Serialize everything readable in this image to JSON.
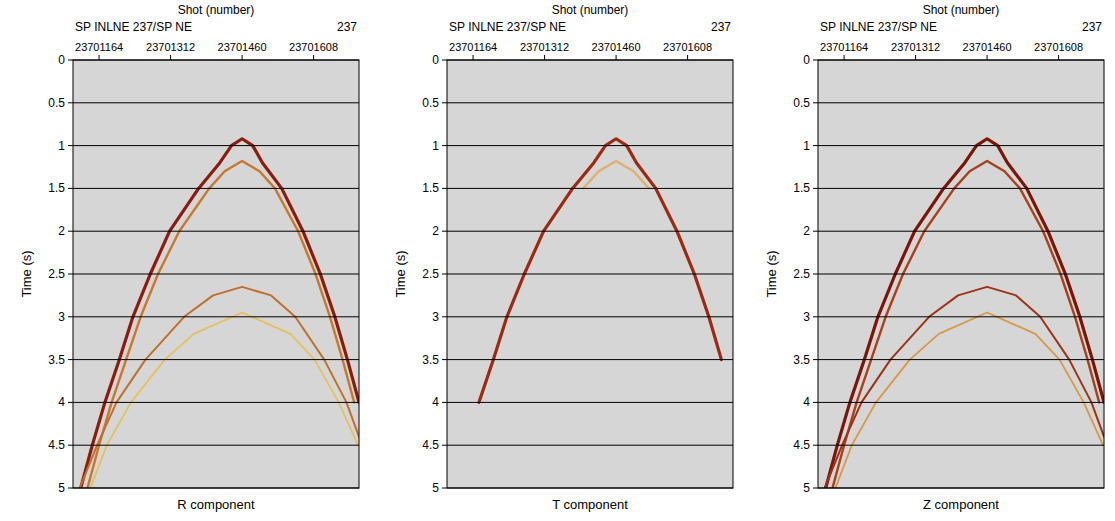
{
  "chart_data": [
    {
      "type": "line",
      "title": "R component",
      "top_label": "Shot (number)",
      "axis_caption": "SP INLNE 237/SP NE",
      "axis_end_label": "237",
      "ylabel": "Time (s)",
      "xlim": [
        23701110,
        23701702
      ],
      "xticks": [
        23701164,
        23701312,
        23701460,
        23701608
      ],
      "ylim": [
        0,
        5
      ],
      "yticks": [
        0,
        0.5,
        1,
        1.5,
        2,
        2.5,
        3,
        3.5,
        4,
        4.5,
        5
      ],
      "grid": true,
      "series": [
        {
          "color": "#8a1c0e",
          "x": [
            23701126,
            23701150,
            23701176,
            23701206,
            23701234,
            23701270,
            23701310,
            23701370,
            23701414,
            23701438,
            23701460,
            23701482,
            23701502,
            23701542,
            23701586,
            23701622,
            23701652,
            23701678,
            23701702
          ],
          "values": [
            5,
            4.5,
            4,
            3.5,
            3,
            2.5,
            2,
            1.5,
            1.2,
            1.0,
            0.92,
            1.0,
            1.2,
            1.5,
            2,
            2.5,
            3,
            3.5,
            4
          ]
        },
        {
          "color": "#c8782e",
          "x": [
            23701140,
            23701164,
            23701190,
            23701220,
            23701250,
            23701286,
            23701330,
            23701392,
            23701424,
            23701460,
            23701496,
            23701528,
            23701576,
            23701612,
            23701642,
            23701668,
            23701692
          ],
          "values": [
            5,
            4.5,
            4,
            3.5,
            3,
            2.5,
            2,
            1.5,
            1.3,
            1.18,
            1.3,
            1.5,
            2,
            2.5,
            3,
            3.5,
            4
          ]
        },
        {
          "color": "#c0702a",
          "x": [
            23701124,
            23701160,
            23701200,
            23701260,
            23701340,
            23701400,
            23701460,
            23701520,
            23701570,
            23701630,
            23701676,
            23701702
          ],
          "values": [
            5,
            4.5,
            4,
            3.5,
            3,
            2.75,
            2.65,
            2.75,
            3,
            3.5,
            4,
            4.4
          ]
        },
        {
          "color": "#e6c060",
          "x": [
            23701146,
            23701180,
            23701230,
            23701300,
            23701360,
            23701460,
            23701560,
            23701610,
            23701660,
            23701700
          ],
          "values": [
            5,
            4.5,
            4,
            3.5,
            3.2,
            2.95,
            3.2,
            3.5,
            4,
            4.5
          ]
        }
      ]
    },
    {
      "type": "line",
      "title": "T component",
      "top_label": "Shot (number)",
      "axis_caption": "SP INLNE 237/SP NE",
      "axis_end_label": "237",
      "ylabel": "Time (s)",
      "xlim": [
        23701110,
        23701702
      ],
      "xticks": [
        23701164,
        23701312,
        23701460,
        23701608
      ],
      "ylim": [
        0,
        5
      ],
      "yticks": [
        0,
        0.5,
        1,
        1.5,
        2,
        2.5,
        3,
        3.5,
        4,
        4.5,
        5
      ],
      "grid": true,
      "series": [
        {
          "color": "#9a2a12",
          "x": [
            23701176,
            23701206,
            23701234,
            23701270,
            23701310,
            23701370,
            23701414,
            23701438,
            23701460,
            23701482,
            23701502,
            23701542,
            23701586,
            23701622,
            23701652,
            23701678
          ],
          "values": [
            4,
            3.5,
            3,
            2.5,
            2,
            1.5,
            1.2,
            1.0,
            0.92,
            1.0,
            1.2,
            1.5,
            2,
            2.5,
            3,
            3.5
          ]
        },
        {
          "color": "#e0b070",
          "x": [
            23701392,
            23701424,
            23701460,
            23701496,
            23701528
          ],
          "values": [
            1.5,
            1.3,
            1.18,
            1.3,
            1.5
          ]
        }
      ]
    },
    {
      "type": "line",
      "title": "Z component",
      "top_label": "Shot (number)",
      "axis_caption": "SP INLNE 237/SP NE",
      "axis_end_label": "237",
      "ylabel": "Time (s)",
      "xlim": [
        23701110,
        23701702
      ],
      "xticks": [
        23701164,
        23701312,
        23701460,
        23701608
      ],
      "ylim": [
        0,
        5
      ],
      "yticks": [
        0,
        0.5,
        1,
        1.5,
        2,
        2.5,
        3,
        3.5,
        4,
        4.5,
        5
      ],
      "grid": true,
      "series": [
        {
          "color": "#7a1608",
          "x": [
            23701126,
            23701150,
            23701176,
            23701206,
            23701234,
            23701270,
            23701310,
            23701370,
            23701414,
            23701438,
            23701460,
            23701482,
            23701502,
            23701542,
            23701586,
            23701622,
            23701652,
            23701678,
            23701702
          ],
          "values": [
            5,
            4.5,
            4,
            3.5,
            3,
            2.5,
            2,
            1.5,
            1.2,
            1.0,
            0.92,
            1.0,
            1.2,
            1.5,
            2,
            2.5,
            3,
            3.5,
            4
          ]
        },
        {
          "color": "#a8401a",
          "x": [
            23701140,
            23701164,
            23701190,
            23701220,
            23701250,
            23701286,
            23701330,
            23701392,
            23701424,
            23701460,
            23701496,
            23701528,
            23701576,
            23701612,
            23701642,
            23701668,
            23701692
          ],
          "values": [
            5,
            4.5,
            4,
            3.5,
            3,
            2.5,
            2,
            1.5,
            1.3,
            1.18,
            1.3,
            1.5,
            2,
            2.5,
            3,
            3.5,
            4
          ]
        },
        {
          "color": "#9a3414",
          "x": [
            23701124,
            23701160,
            23701200,
            23701260,
            23701340,
            23701400,
            23701460,
            23701520,
            23701570,
            23701630,
            23701676,
            23701702
          ],
          "values": [
            5,
            4.5,
            4,
            3.5,
            3,
            2.75,
            2.65,
            2.75,
            3,
            3.5,
            4,
            4.4
          ]
        },
        {
          "color": "#d89848",
          "x": [
            23701146,
            23701180,
            23701230,
            23701300,
            23701360,
            23701460,
            23701560,
            23701610,
            23701660,
            23701700
          ],
          "values": [
            5,
            4.5,
            4,
            3.5,
            3.2,
            2.95,
            3.2,
            3.5,
            4,
            4.5
          ]
        }
      ]
    }
  ]
}
